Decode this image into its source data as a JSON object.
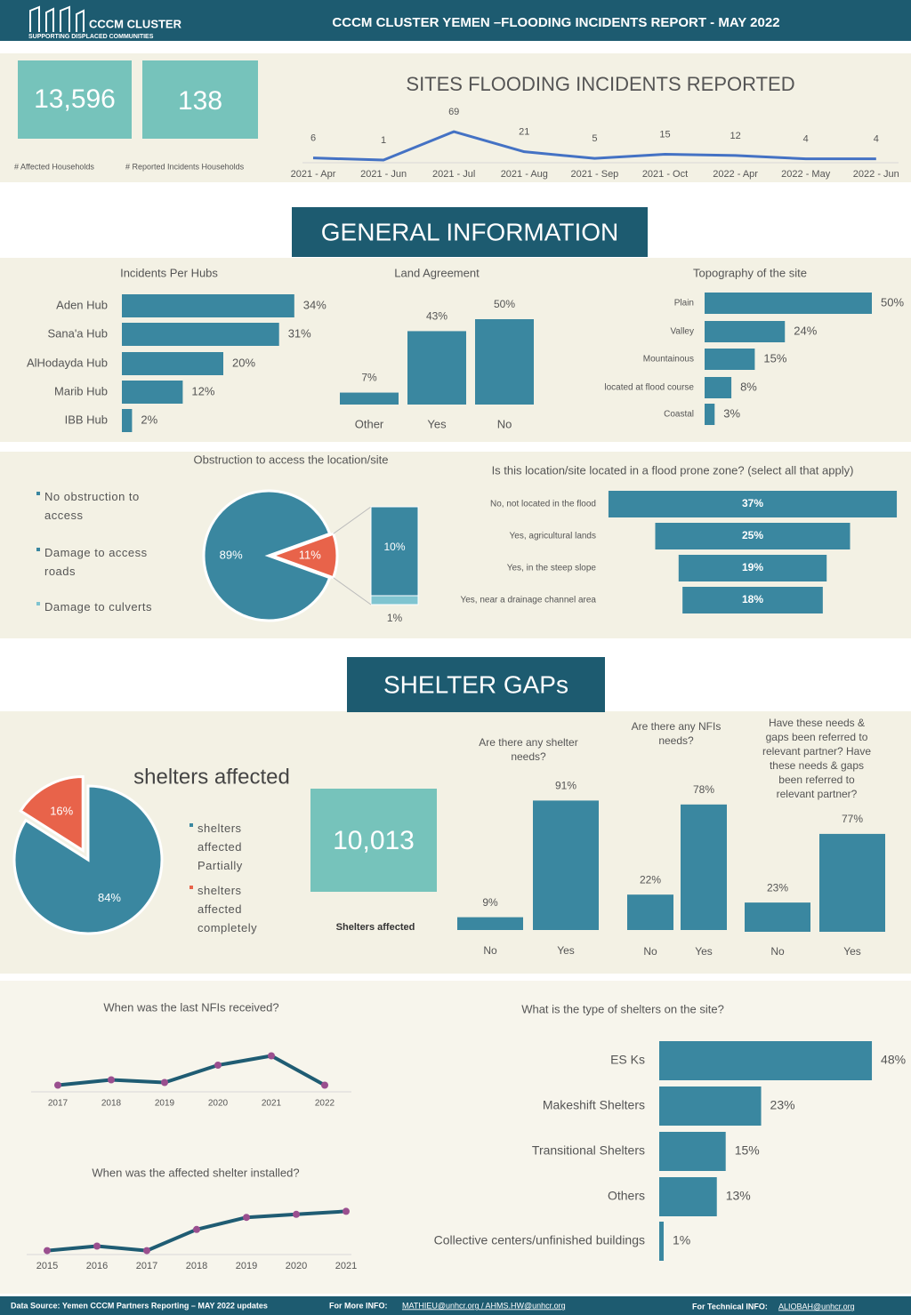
{
  "header": {
    "logo_title": "CCCM CLUSTER",
    "logo_subtitle": "SUPPORTING DISPLACED COMMUNITIES",
    "title": "CCCM CLUSTER YEMEN –FLOODING INCIDENTS REPORT - MAY 2022"
  },
  "kpis": [
    {
      "value": "13,596",
      "label": "# Affected Households"
    },
    {
      "value": "138",
      "label": "# Reported Incidents Households"
    },
    {
      "value": "10,013",
      "label": "Shelters affected"
    }
  ],
  "sections": [
    "GENERAL INFORMATION",
    "SHELTER GAPs"
  ],
  "chart_data": [
    {
      "type": "line",
      "title": "SITES FLOODING INCIDENTS REPORTED",
      "categories": [
        "2021 - Apr",
        "2021 - Jun",
        "2021 - Jul",
        "2021 - Aug",
        "2021 - Sep",
        "2021 - Oct",
        "2022 - Apr",
        "2022 - May",
        "2022 - Jun"
      ],
      "values": [
        6,
        1,
        69,
        21,
        5,
        15,
        12,
        4,
        4
      ],
      "color": "#4472c4",
      "markers": false,
      "data_labels": true
    },
    {
      "type": "bar",
      "orientation": "horizontal",
      "title": "Incidents Per Hubs",
      "categories": [
        "Aden Hub",
        "Sana'a Hub",
        "AlHodayda Hub",
        "Marib Hub",
        "IBB Hub"
      ],
      "values": [
        34,
        31,
        20,
        12,
        2
      ],
      "value_labels": [
        "34%",
        "31%",
        "20%",
        "12%",
        "2%"
      ],
      "color": "#3a87a0"
    },
    {
      "type": "bar",
      "orientation": "vertical",
      "title": "Land Agreement",
      "categories": [
        "Other",
        "Yes",
        "No"
      ],
      "values": [
        7,
        43,
        50
      ],
      "value_labels": [
        "7%",
        "43%",
        "50%"
      ],
      "color": "#3a87a0"
    },
    {
      "type": "bar",
      "orientation": "horizontal",
      "title": "Topography of the site",
      "categories": [
        "Plain",
        "Valley",
        "Mountainous",
        "located at flood course",
        "Coastal"
      ],
      "values": [
        50,
        24,
        15,
        8,
        3
      ],
      "value_labels": [
        "50%",
        "24%",
        "15%",
        "8%",
        "3%"
      ],
      "color": "#3a87a0"
    },
    {
      "type": "pie",
      "title": "Obstruction to access the location/site",
      "categories": [
        "No obstruction to access",
        "Damage to access roads",
        "Damage to culverts"
      ],
      "values": [
        89,
        10,
        1
      ],
      "value_labels": [
        "89%",
        "10%",
        "1%"
      ],
      "colors": [
        "#3a87a0",
        "#3a87a0",
        "#7fc4d0"
      ],
      "combined_value": 11,
      "combined_label": "11%",
      "combined_color": "#e8634a"
    },
    {
      "type": "bar",
      "orientation": "horizontal",
      "align": "center",
      "title": "Is this location/site located in a flood prone zone? (select all that apply)",
      "categories": [
        "No, not located in the flood",
        "Yes, agricultural lands",
        "Yes, in the steep slope",
        "Yes, near a drainage channel area"
      ],
      "values": [
        37,
        25,
        19,
        18
      ],
      "value_labels": [
        "37%",
        "25%",
        "19%",
        "18%"
      ],
      "color": "#3a87a0"
    },
    {
      "type": "pie",
      "title": "shelters affected",
      "categories": [
        "shelters affected Partially",
        "shelters affected completely"
      ],
      "values": [
        84,
        16
      ],
      "value_labels": [
        "84%",
        "16%"
      ],
      "colors": [
        "#3a87a0",
        "#e8634a"
      ]
    },
    {
      "type": "bar",
      "orientation": "vertical",
      "title": "Are there any shelter needs?",
      "categories": [
        "No",
        "Yes"
      ],
      "values": [
        9,
        91
      ],
      "value_labels": [
        "9%",
        "91%"
      ],
      "color": "#3a87a0"
    },
    {
      "type": "bar",
      "orientation": "vertical",
      "title": "Are there any NFIs needs?",
      "categories": [
        "No",
        "Yes"
      ],
      "values": [
        22,
        78
      ],
      "value_labels": [
        "22%",
        "78%"
      ],
      "color": "#3a87a0"
    },
    {
      "type": "bar",
      "orientation": "vertical",
      "title": "Have these needs & gaps been referred to relevant partner? Have these needs & gaps been referred to relevant partner?",
      "categories": [
        "No",
        "Yes"
      ],
      "values": [
        23,
        77
      ],
      "value_labels": [
        "23%",
        "77%"
      ],
      "color": "#3a87a0"
    },
    {
      "type": "line",
      "title": "When was the last NFIs received?",
      "categories": [
        "2017",
        "2018",
        "2019",
        "2020",
        "2021",
        "2022"
      ],
      "values": [
        5,
        9,
        7,
        20,
        27,
        5
      ],
      "color": "#1f5c73",
      "markers": true,
      "marker_color": "#9a4f8f",
      "data_labels": false
    },
    {
      "type": "line",
      "title": "When was the affected shelter installed?",
      "categories": [
        "2015",
        "2016",
        "2017",
        "2018",
        "2019",
        "2020",
        "2021"
      ],
      "values": [
        2,
        5,
        2,
        16,
        24,
        26,
        28
      ],
      "color": "#1f5c73",
      "markers": true,
      "marker_color": "#9a4f8f",
      "data_labels": false
    },
    {
      "type": "bar",
      "orientation": "horizontal",
      "title": "What is the type of shelters on the site?",
      "categories": [
        "ES Ks",
        "Makeshift Shelters",
        "Transitional Shelters",
        "Others",
        "Collective centers/unfinished buildings"
      ],
      "values": [
        48,
        23,
        15,
        13,
        1
      ],
      "value_labels": [
        "48%",
        "23%",
        "15%",
        "13%",
        "1%"
      ],
      "color": "#3a87a0"
    }
  ],
  "footer": {
    "source": "Data Source: Yemen CCCM Partners Reporting – MAY 2022 updates",
    "more_info_label": "For More INFO:",
    "more_info": "MATHIEU@unhcr.org / AHMS.HW@unhcr.org",
    "tech_info_label": "For Technical INFO:",
    "tech_info": "ALIOBAH@unhcr.org"
  }
}
